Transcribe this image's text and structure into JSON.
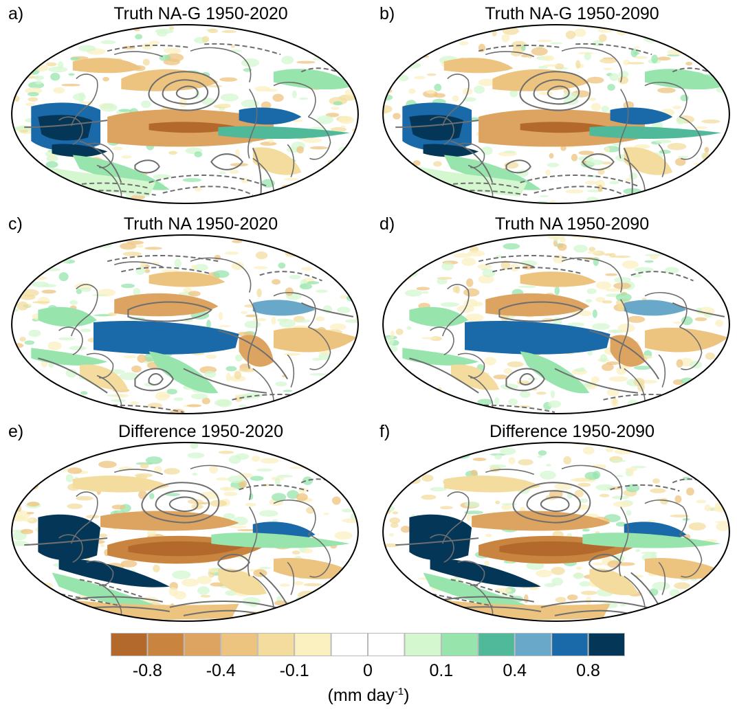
{
  "panels": [
    {
      "letter": "a)",
      "title": "Truth NA-G 1950-2020",
      "style": "nag"
    },
    {
      "letter": "b)",
      "title": "Truth NA-G 1950-2090",
      "style": "nag"
    },
    {
      "letter": "c)",
      "title": "Truth NA 1950-2020",
      "style": "na"
    },
    {
      "letter": "d)",
      "title": "Truth NA 1950-2090",
      "style": "na"
    },
    {
      "letter": "e)",
      "title": "Difference 1950-2020",
      "style": "diff"
    },
    {
      "letter": "f)",
      "title": "Difference 1950-2090",
      "style": "diff"
    }
  ],
  "colorbar": {
    "colors": [
      "#b3692b",
      "#c98540",
      "#dca460",
      "#edc47f",
      "#f3dc9e",
      "#fbf0c0",
      "#ffffff",
      "#ffffff",
      "#d4f7d0",
      "#97e4ad",
      "#4fb99a",
      "#6aa8c9",
      "#1a6aaa",
      "#043658"
    ],
    "labels": [
      "-0.8",
      "-0.4",
      "-0.1",
      "0",
      "0.1",
      "0.4",
      "0.8"
    ],
    "units_text": "(mm day",
    "units_exp": "-1",
    "units_close": ")"
  },
  "contour_color": "#6e6e6e"
}
